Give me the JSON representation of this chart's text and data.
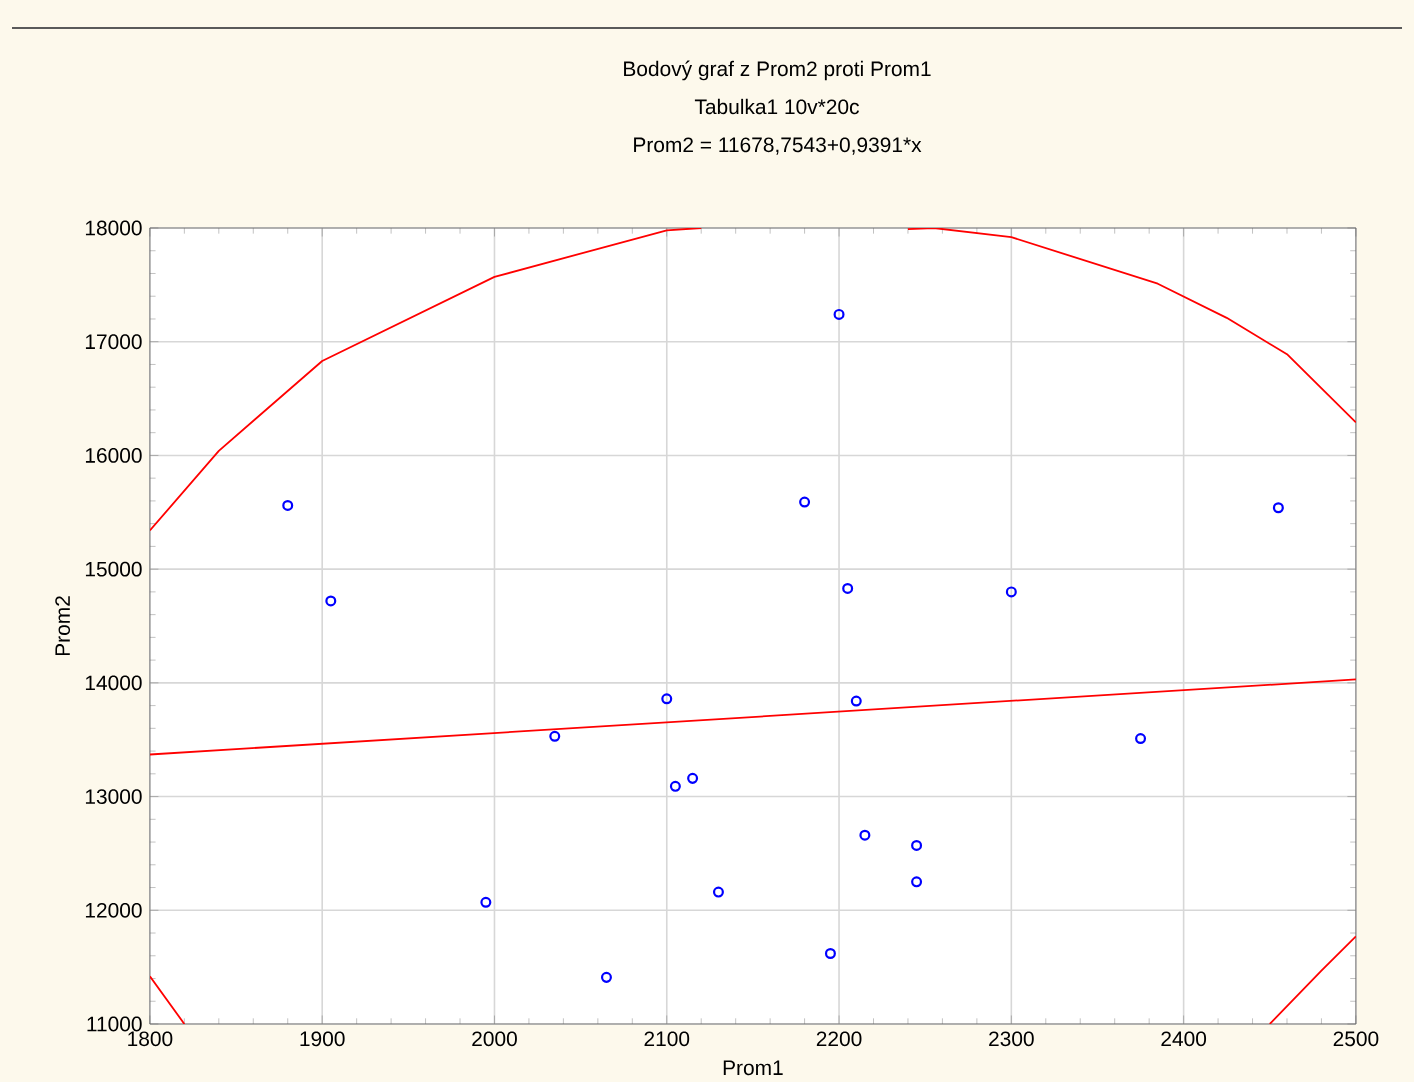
{
  "chart_data": {
    "type": "scatter",
    "title": "Bodový graf z Prom2 proti Prom1",
    "subtitle": "Tabulka1 10v*20c",
    "annotations": [
      "Prom2 = 11678,7543+0,9391*x"
    ],
    "xlabel": "Prom1",
    "ylabel": "Prom2",
    "xlim": [
      1800,
      2500
    ],
    "xticks": [
      1800,
      1900,
      2000,
      2100,
      2200,
      2300,
      2400,
      2500
    ],
    "ylim": [
      11000,
      18000
    ],
    "yticks": [
      11000,
      12000,
      13000,
      14000,
      15000,
      16000,
      17000,
      18000
    ],
    "grid": true,
    "series": [
      {
        "color": "#0000ff",
        "marker": "circle",
        "x": [
          1880,
          1905,
          2035,
          1995,
          2065,
          2100,
          2105,
          2115,
          2130,
          2200,
          2180,
          2205,
          2300,
          2455,
          2210,
          2375,
          2215,
          2245,
          2245,
          2195
        ],
        "values": [
          15560,
          14720,
          13530,
          12070,
          11410,
          13860,
          13090,
          13160,
          12160,
          17240,
          15590,
          14830,
          14800,
          15540,
          13840,
          13510,
          12660,
          12570,
          12250,
          11620
        ]
      },
      {
        "type": "line",
        "color": "#ff0000",
        "marker": "none",
        "x": [
          1800,
          2500
        ],
        "values": [
          13370,
          14030
        ]
      },
      {
        "type": "line",
        "color": "#ff0000",
        "marker": "none",
        "x": [
          1800,
          1820,
          null,
          1800,
          1840,
          1900,
          2000,
          2100,
          2120,
          null,
          2240,
          2255,
          2300,
          2385,
          2425,
          2460,
          2500,
          null,
          2500,
          2480,
          2450
        ],
        "values": [
          11420,
          11000,
          null,
          15340,
          16040,
          16830,
          17570,
          17980,
          18000,
          null,
          17990,
          18000,
          17920,
          17510,
          17210,
          16890,
          16290,
          null,
          11770,
          11470,
          11000
        ]
      }
    ]
  }
}
